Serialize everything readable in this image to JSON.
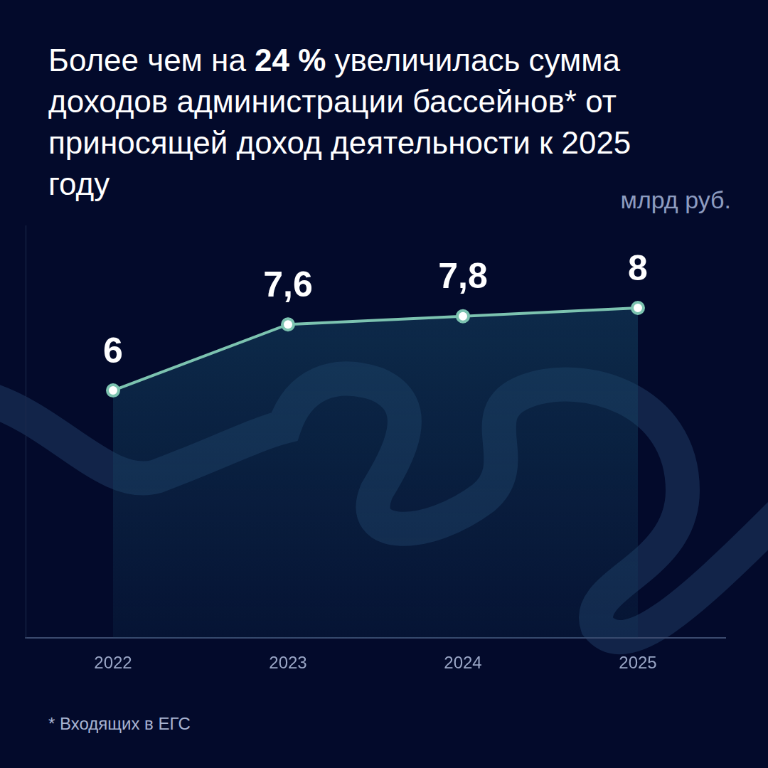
{
  "chart_data": {
    "type": "line",
    "title": "Более чем на 24 % увеличилась сумма доходов администрации бассейнов* от приносящей доход деятельности к 2025 году",
    "y_label": "млрд руб.",
    "footnote": "* Входящих в ЕГС",
    "categories": [
      "2022",
      "2023",
      "2024",
      "2025"
    ],
    "values": [
      6,
      7.6,
      7.8,
      8
    ],
    "value_labels": [
      "6",
      "7,6",
      "7,8",
      "8"
    ],
    "color": "#7cc3b0",
    "marker": "circle",
    "ylim": [
      0,
      10
    ],
    "grid": false,
    "data_labels": true,
    "tick_labels": "x"
  }
}
